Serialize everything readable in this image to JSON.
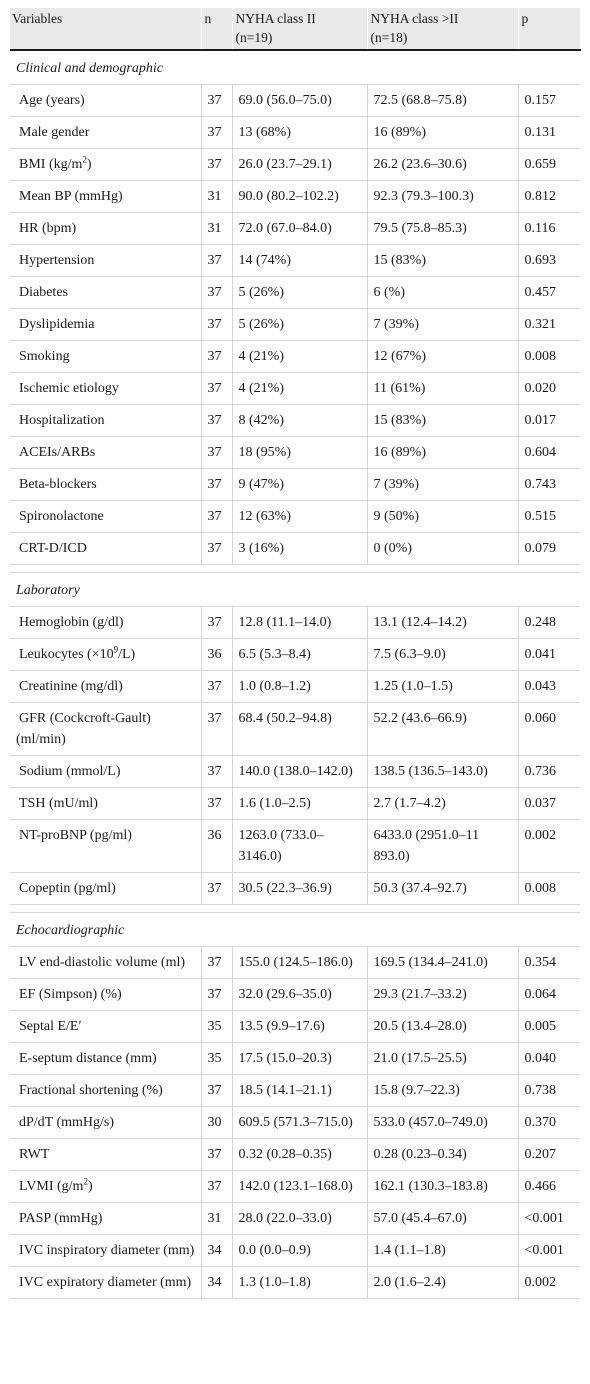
{
  "table": {
    "headers": {
      "variables": "Variables",
      "n": "n",
      "class2": "NYHA class II",
      "class2_n": "(n=19)",
      "class3": "NYHA class >II",
      "class3_n": "(n=18)",
      "p": "p"
    },
    "sections": [
      {
        "title": "Clinical and demographic",
        "rows": [
          {
            "label": "Age (years)",
            "n": "37",
            "c2": "69.0 (56.0–75.0)",
            "c3": "72.5 (68.8–75.8)",
            "p": "0.157"
          },
          {
            "label": "Male gender",
            "n": "37",
            "c2": "13 (68%)",
            "c3": "16 (89%)",
            "p": "0.131"
          },
          {
            "label": "BMI (kg/m",
            "sup": "2",
            "after": ")",
            "n": "37",
            "c2": "26.0 (23.7–29.1)",
            "c3": "26.2 (23.6–30.6)",
            "p": "0.659"
          },
          {
            "label": "Mean BP (mmHg)",
            "n": "31",
            "c2": "90.0 (80.2–102.2)",
            "c3": "92.3 (79.3–100.3)",
            "p": "0.812"
          },
          {
            "label": "HR (bpm)",
            "n": "31",
            "c2": "72.0 (67.0–84.0)",
            "c3": "79.5 (75.8–85.3)",
            "p": "0.116"
          },
          {
            "label": "Hypertension",
            "n": "37",
            "c2": "14 (74%)",
            "c3": "15 (83%)",
            "p": "0.693"
          },
          {
            "label": "Diabetes",
            "n": "37",
            "c2": "5 (26%)",
            "c3": "6 (%)",
            "p": "0.457"
          },
          {
            "label": "Dyslipidemia",
            "n": "37",
            "c2": "5 (26%)",
            "c3": "7 (39%)",
            "p": "0.321"
          },
          {
            "label": "Smoking",
            "n": "37",
            "c2": "4 (21%)",
            "c3": "12 (67%)",
            "p": "0.008"
          },
          {
            "label": "Ischemic etiology",
            "n": "37",
            "c2": "4 (21%)",
            "c3": "11 (61%)",
            "p": "0.020"
          },
          {
            "label": "Hospitalization",
            "n": "37",
            "c2": "8 (42%)",
            "c3": "15 (83%)",
            "p": "0.017"
          },
          {
            "label": "ACEIs/ARBs",
            "n": "37",
            "c2": "18 (95%)",
            "c3": "16 (89%)",
            "p": "0.604"
          },
          {
            "label": "Beta-blockers",
            "n": "37",
            "c2": "9 (47%)",
            "c3": "7 (39%)",
            "p": "0.743"
          },
          {
            "label": "Spironolactone",
            "n": "37",
            "c2": "12 (63%)",
            "c3": "9 (50%)",
            "p": "0.515"
          },
          {
            "label": "CRT-D/ICD",
            "n": "37",
            "c2": "3 (16%)",
            "c3": "0 (0%)",
            "p": "0.079"
          }
        ]
      },
      {
        "title": "Laboratory",
        "rows": [
          {
            "label": "Hemoglobin (g/dl)",
            "n": "37",
            "c2": "12.8 (11.1–14.0)",
            "c3": "13.1 (12.4–14.2)",
            "p": "0.248"
          },
          {
            "label": "Leukocytes (×10",
            "sup": "9",
            "after": "/L)",
            "n": "36",
            "c2": "6.5 (5.3–8.4)",
            "c3": "7.5 (6.3–9.0)",
            "p": "0.041"
          },
          {
            "label": "Creatinine (mg/dl)",
            "n": "37",
            "c2": "1.0 (0.8–1.2)",
            "c3": "1.25 (1.0–1.5)",
            "p": "0.043"
          },
          {
            "label": "GFR (Cockcroft-Gault) (ml/min)",
            "n": "37",
            "c2": "68.4 (50.2–94.8)",
            "c3": "52.2 (43.6–66.9)",
            "p": "0.060"
          },
          {
            "label": "Sodium (mmol/L)",
            "n": "37",
            "c2": "140.0 (138.0–142.0)",
            "c3": "138.5 (136.5–143.0)",
            "p": "0.736"
          },
          {
            "label": "TSH (mU/ml)",
            "n": "37",
            "c2": "1.6 (1.0–2.5)",
            "c3": "2.7 (1.7–4.2)",
            "p": "0.037"
          },
          {
            "label": "NT-proBNP (pg/ml)",
            "n": "36",
            "c2": "1263.0 (733.0–3146.0)",
            "c3": "6433.0 (2951.0–11 893.0)",
            "p": "0.002"
          },
          {
            "label": "Copeptin (pg/ml)",
            "n": "37",
            "c2": "30.5 (22.3–36.9)",
            "c3": "50.3 (37.4–92.7)",
            "p": "0.008"
          }
        ]
      },
      {
        "title": "Echocardiographic",
        "rows": [
          {
            "label": "LV end-diastolic volume (ml)",
            "n": "37",
            "c2": "155.0 (124.5–186.0)",
            "c3": "169.5 (134.4–241.0)",
            "p": "0.354"
          },
          {
            "label": "EF (Simpson) (%)",
            "n": "37",
            "c2": "32.0 (29.6–35.0)",
            "c3": "29.3 (21.7–33.2)",
            "p": "0.064"
          },
          {
            "label": "Septal E/E′",
            "n": "35",
            "c2": "13.5 (9.9–17.6)",
            "c3": "20.5 (13.4–28.0)",
            "p": "0.005"
          },
          {
            "label": "E-septum distance (mm)",
            "n": "35",
            "c2": "17.5 (15.0–20.3)",
            "c3": "21.0 (17.5–25.5)",
            "p": "0.040"
          },
          {
            "label": "Fractional shortening (%)",
            "n": "37",
            "c2": "18.5 (14.1–21.1)",
            "c3": "15.8 (9.7–22.3)",
            "p": "0.738"
          },
          {
            "label": "dP/dT (mmHg/s)",
            "n": "30",
            "c2": "609.5 (571.3–715.0)",
            "c3": "533.0 (457.0–749.0)",
            "p": "0.370"
          },
          {
            "label": "RWT",
            "n": "37",
            "c2": "0.32 (0.28–0.35)",
            "c3": "0.28 (0.23–0.34)",
            "p": "0.207"
          },
          {
            "label": "LVMI (g/m",
            "sup": "2",
            "after": ")",
            "n": "37",
            "c2": "142.0 (123.1–168.0)",
            "c3": "162.1 (130.3–183.8)",
            "p": "0.466"
          },
          {
            "label": "PASP (mmHg)",
            "n": "31",
            "c2": "28.0 (22.0–33.0)",
            "c3": "57.0 (45.4–67.0)",
            "p": "<0.001"
          },
          {
            "label": "IVC inspiratory diameter (mm)",
            "n": "34",
            "c2": "0.0 (0.0–0.9)",
            "c3": "1.4 (1.1–1.8)",
            "p": "<0.001"
          },
          {
            "label": "IVC expiratory diameter (mm)",
            "n": "34",
            "c2": "1.3 (1.0–1.8)",
            "c3": "2.0 (1.6–2.4)",
            "p": "0.002"
          }
        ]
      }
    ]
  }
}
